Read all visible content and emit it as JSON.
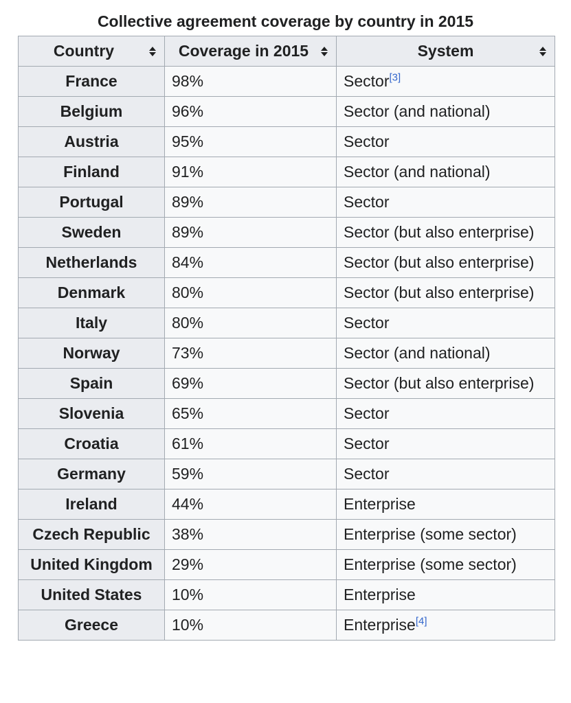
{
  "caption": "Collective agreement coverage by country in 2015",
  "headers": [
    "Country",
    "Coverage in 2015",
    "System"
  ],
  "rows": [
    {
      "country": "France",
      "coverage": "98%",
      "system": "Sector",
      "ref": "[3]"
    },
    {
      "country": "Belgium",
      "coverage": "96%",
      "system": "Sector (and national)"
    },
    {
      "country": "Austria",
      "coverage": "95%",
      "system": "Sector"
    },
    {
      "country": "Finland",
      "coverage": "91%",
      "system": "Sector (and national)"
    },
    {
      "country": "Portugal",
      "coverage": "89%",
      "system": "Sector"
    },
    {
      "country": "Sweden",
      "coverage": "89%",
      "system": "Sector (but also enterprise)"
    },
    {
      "country": "Netherlands",
      "coverage": "84%",
      "system": "Sector (but also enterprise)"
    },
    {
      "country": "Denmark",
      "coverage": "80%",
      "system": "Sector (but also enterprise)"
    },
    {
      "country": "Italy",
      "coverage": "80%",
      "system": "Sector"
    },
    {
      "country": "Norway",
      "coverage": "73%",
      "system": "Sector (and national)"
    },
    {
      "country": "Spain",
      "coverage": "69%",
      "system": "Sector (but also enterprise)"
    },
    {
      "country": "Slovenia",
      "coverage": "65%",
      "system": "Sector"
    },
    {
      "country": "Croatia",
      "coverage": "61%",
      "system": "Sector"
    },
    {
      "country": "Germany",
      "coverage": "59%",
      "system": "Sector"
    },
    {
      "country": "Ireland",
      "coverage": "44%",
      "system": "Enterprise"
    },
    {
      "country": "Czech Republic",
      "coverage": "38%",
      "system": "Enterprise (some sector)"
    },
    {
      "country": "United Kingdom",
      "coverage": "29%",
      "system": "Enterprise (some sector)"
    },
    {
      "country": "United States",
      "coverage": "10%",
      "system": "Enterprise"
    },
    {
      "country": "Greece",
      "coverage": "10%",
      "system": "Enterprise",
      "ref": "[4]"
    }
  ],
  "colors": {
    "link": "#3366cc",
    "header_bg": "#eaecf0",
    "cell_bg": "#f8f9fa",
    "border": "#a2a9b1"
  },
  "icons": {
    "sort": "sort-arrows-icon"
  }
}
